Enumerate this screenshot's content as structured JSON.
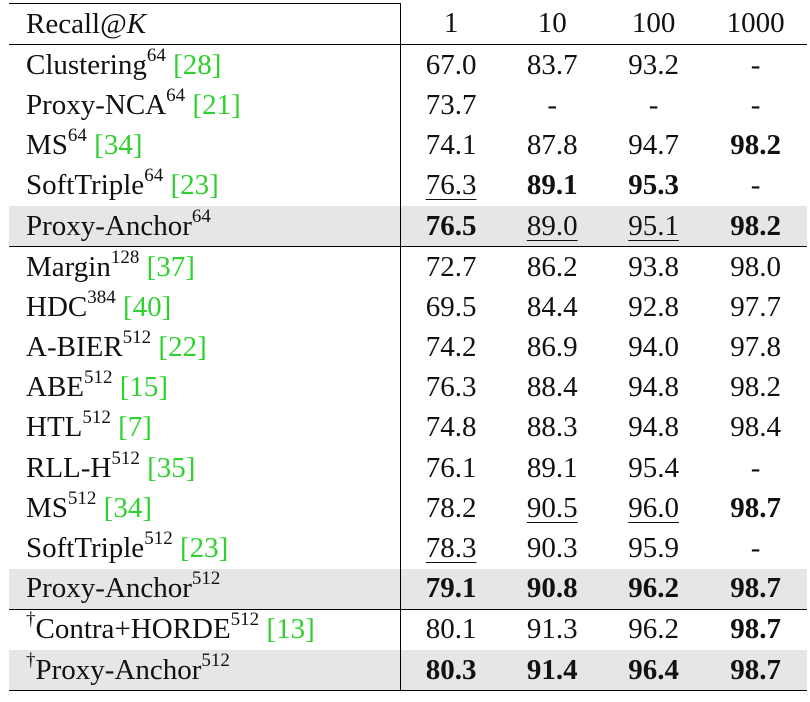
{
  "header": {
    "label": "Recall@",
    "label_var": "K",
    "columns": [
      "1",
      "10",
      "100",
      "1000"
    ]
  },
  "rows": [
    {
      "dagger": false,
      "name": "Clustering",
      "dim": "64",
      "ref": "[28]",
      "highlight": false,
      "sep_top": true,
      "values": [
        {
          "v": "67.0"
        },
        {
          "v": "83.7"
        },
        {
          "v": "93.2"
        },
        {
          "v": "-"
        }
      ]
    },
    {
      "dagger": false,
      "name": "Proxy-NCA",
      "dim": "64",
      "ref": "[21]",
      "highlight": false,
      "sep_top": false,
      "values": [
        {
          "v": "73.7"
        },
        {
          "v": "-"
        },
        {
          "v": "-"
        },
        {
          "v": "-"
        }
      ]
    },
    {
      "dagger": false,
      "name": "MS",
      "dim": "64",
      "ref": "[34]",
      "highlight": false,
      "sep_top": false,
      "values": [
        {
          "v": "74.1"
        },
        {
          "v": "87.8"
        },
        {
          "v": "94.7"
        },
        {
          "v": "98.2",
          "bold": true
        }
      ]
    },
    {
      "dagger": false,
      "name": "SoftTriple",
      "dim": "64",
      "ref": "[23]",
      "highlight": false,
      "sep_top": false,
      "values": [
        {
          "v": "76.3",
          "underline": true
        },
        {
          "v": "89.1",
          "bold": true
        },
        {
          "v": "95.3",
          "bold": true
        },
        {
          "v": "-"
        }
      ]
    },
    {
      "dagger": false,
      "name": "Proxy-Anchor",
      "dim": "64",
      "ref": "",
      "highlight": true,
      "sep_top": false,
      "values": [
        {
          "v": "76.5",
          "bold": true
        },
        {
          "v": "89.0",
          "underline": true
        },
        {
          "v": "95.1",
          "underline": true
        },
        {
          "v": "98.2",
          "bold": true
        }
      ]
    },
    {
      "dagger": false,
      "name": "Margin",
      "dim": "128",
      "ref": "[37]",
      "highlight": false,
      "sep_top": true,
      "values": [
        {
          "v": "72.7"
        },
        {
          "v": "86.2"
        },
        {
          "v": "93.8"
        },
        {
          "v": "98.0"
        }
      ]
    },
    {
      "dagger": false,
      "name": "HDC",
      "dim": "384",
      "ref": "[40]",
      "highlight": false,
      "sep_top": false,
      "values": [
        {
          "v": "69.5"
        },
        {
          "v": "84.4"
        },
        {
          "v": "92.8"
        },
        {
          "v": "97.7"
        }
      ]
    },
    {
      "dagger": false,
      "name": "A-BIER",
      "dim": "512",
      "ref": "[22]",
      "highlight": false,
      "sep_top": false,
      "values": [
        {
          "v": "74.2"
        },
        {
          "v": "86.9"
        },
        {
          "v": "94.0"
        },
        {
          "v": "97.8"
        }
      ]
    },
    {
      "dagger": false,
      "name": "ABE",
      "dim": "512",
      "ref": "[15]",
      "highlight": false,
      "sep_top": false,
      "values": [
        {
          "v": "76.3"
        },
        {
          "v": "88.4"
        },
        {
          "v": "94.8"
        },
        {
          "v": "98.2"
        }
      ]
    },
    {
      "dagger": false,
      "name": "HTL",
      "dim": "512",
      "ref": "[7]",
      "highlight": false,
      "sep_top": false,
      "values": [
        {
          "v": "74.8"
        },
        {
          "v": "88.3"
        },
        {
          "v": "94.8"
        },
        {
          "v": "98.4"
        }
      ]
    },
    {
      "dagger": false,
      "name": "RLL-H",
      "dim": "512",
      "ref": "[35]",
      "highlight": false,
      "sep_top": false,
      "values": [
        {
          "v": "76.1"
        },
        {
          "v": "89.1"
        },
        {
          "v": "95.4"
        },
        {
          "v": "-"
        }
      ]
    },
    {
      "dagger": false,
      "name": "MS",
      "dim": "512",
      "ref": "[34]",
      "highlight": false,
      "sep_top": false,
      "values": [
        {
          "v": "78.2"
        },
        {
          "v": "90.5",
          "underline": true
        },
        {
          "v": "96.0",
          "underline": true
        },
        {
          "v": "98.7",
          "bold": true
        }
      ]
    },
    {
      "dagger": false,
      "name": "SoftTriple",
      "dim": "512",
      "ref": "[23]",
      "highlight": false,
      "sep_top": false,
      "values": [
        {
          "v": "78.3",
          "underline": true
        },
        {
          "v": "90.3"
        },
        {
          "v": "95.9"
        },
        {
          "v": "-"
        }
      ]
    },
    {
      "dagger": false,
      "name": "Proxy-Anchor",
      "dim": "512",
      "ref": "",
      "highlight": true,
      "sep_top": false,
      "values": [
        {
          "v": "79.1",
          "bold": true
        },
        {
          "v": "90.8",
          "bold": true
        },
        {
          "v": "96.2",
          "bold": true
        },
        {
          "v": "98.7",
          "bold": true
        }
      ]
    },
    {
      "dagger": true,
      "name": "Contra+HORDE",
      "dim": "512",
      "ref": "[13]",
      "highlight": false,
      "sep_top": true,
      "values": [
        {
          "v": "80.1"
        },
        {
          "v": "91.3"
        },
        {
          "v": "96.2"
        },
        {
          "v": "98.7",
          "bold": true
        }
      ]
    },
    {
      "dagger": true,
      "name": "Proxy-Anchor",
      "dim": "512",
      "ref": "",
      "highlight": true,
      "sep_top": false,
      "values": [
        {
          "v": "80.3",
          "bold": true
        },
        {
          "v": "91.4",
          "bold": true
        },
        {
          "v": "96.4",
          "bold": true
        },
        {
          "v": "98.7",
          "bold": true
        }
      ]
    }
  ],
  "symbols": {
    "dagger": "†"
  }
}
